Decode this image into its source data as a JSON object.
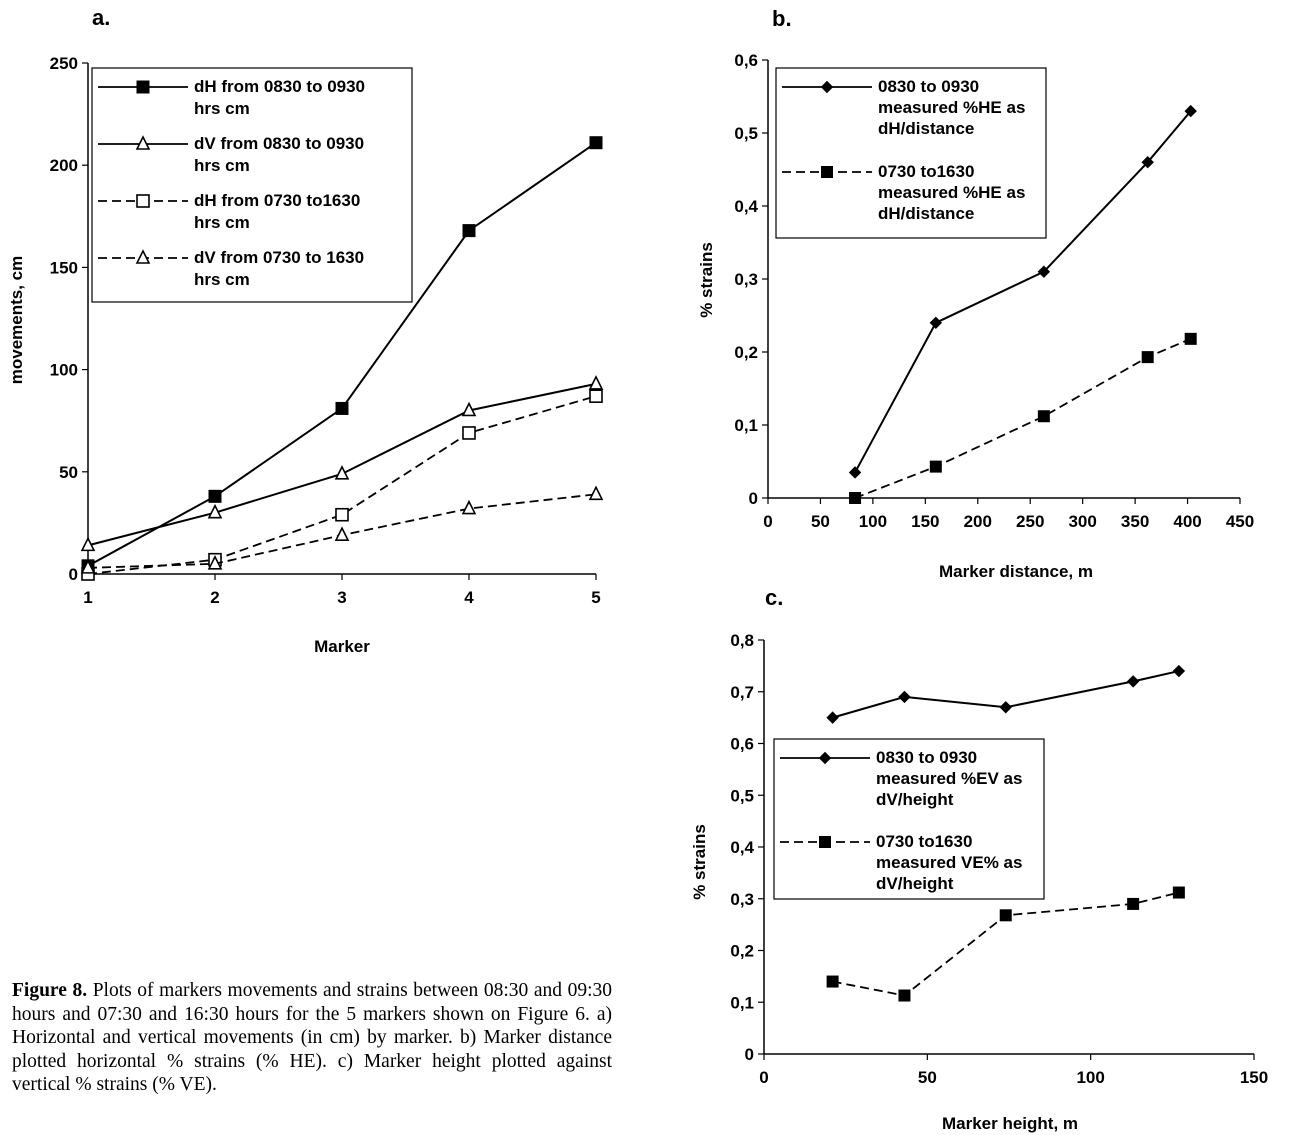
{
  "caption": {
    "label": "Figure 8.",
    "text": "Plots of markers movements and strains between 08:30 and 09:30 hours and 07:30 and 16:30 hours for the 5 markers shown on Figure 6. a) Horizontal and vertical movements (in cm) by marker. b) Marker distance plotted horizontal % strains (% HE). c) Marker height plotted against vertical % strains (% VE)."
  },
  "chart_data": [
    {
      "id": "a",
      "type": "line",
      "title": "a.",
      "xlabel": "Marker",
      "ylabel": "movements, cm",
      "xlim": [
        1,
        5
      ],
      "ylim": [
        0,
        250
      ],
      "xticks": [
        1,
        2,
        3,
        4,
        5
      ],
      "yticks": [
        0,
        50,
        100,
        150,
        200,
        250
      ],
      "tick_labels_x": [
        "1",
        "2",
        "3",
        "4",
        "5"
      ],
      "tick_labels_y": [
        "0",
        "50",
        "100",
        "150",
        "200",
        "250"
      ],
      "grid": false,
      "legend": "top-left",
      "series": [
        {
          "name": "dH from 0830 to 0930 hrs cm",
          "x": [
            1,
            2,
            3,
            4,
            5
          ],
          "values": [
            4,
            38,
            81,
            168,
            211
          ],
          "marker": "square-filled",
          "line": "solid"
        },
        {
          "name": "dV from 0830 to 0930 hrs cm",
          "x": [
            1,
            2,
            3,
            4,
            5
          ],
          "values": [
            14,
            30,
            49,
            80,
            93
          ],
          "marker": "triangle-open",
          "line": "solid"
        },
        {
          "name": "dH from 0730 to1630 hrs cm",
          "x": [
            1,
            2,
            3,
            4,
            5
          ],
          "values": [
            0,
            7,
            29,
            69,
            87
          ],
          "marker": "square-open",
          "line": "dashed"
        },
        {
          "name": "dV from 0730 to 1630 hrs cm",
          "x": [
            1,
            2,
            3,
            4,
            5
          ],
          "values": [
            3,
            5,
            19,
            32,
            39
          ],
          "marker": "triangle-open",
          "line": "dashed"
        }
      ]
    },
    {
      "id": "b",
      "type": "line",
      "title": "b.",
      "xlabel": "Marker distance, m",
      "ylabel": "% strains",
      "xlim": [
        0,
        450
      ],
      "ylim": [
        0,
        0.6
      ],
      "xticks": [
        0,
        50,
        100,
        150,
        200,
        250,
        300,
        350,
        400,
        450
      ],
      "yticks": [
        0,
        0.1,
        0.2,
        0.3,
        0.4,
        0.5,
        0.6
      ],
      "tick_labels_x": [
        "0",
        "50",
        "100",
        "150",
        "200",
        "250",
        "300",
        "350",
        "400",
        "450"
      ],
      "tick_labels_y": [
        "0",
        "0,1",
        "0,2",
        "0,3",
        "0,4",
        "0,5",
        "0,6"
      ],
      "grid": false,
      "legend": "top-left",
      "series": [
        {
          "name": "0830 to 0930 measured %HE as dH/distance",
          "x": [
            83,
            160,
            263,
            362,
            403
          ],
          "values": [
            0.035,
            0.24,
            0.31,
            0.46,
            0.53
          ],
          "marker": "diamond-filled",
          "line": "solid"
        },
        {
          "name": "0730 to1630 measured %HE as dH/distance",
          "x": [
            83,
            160,
            263,
            362,
            403
          ],
          "values": [
            0.0,
            0.043,
            0.112,
            0.193,
            0.218
          ],
          "marker": "square-filled",
          "line": "dashed"
        }
      ]
    },
    {
      "id": "c",
      "type": "line",
      "title": "c.",
      "xlabel": "Marker height, m",
      "ylabel": "% strains",
      "xlim": [
        0,
        150
      ],
      "ylim": [
        0,
        0.8
      ],
      "xticks": [
        0,
        50,
        100,
        150
      ],
      "yticks": [
        0,
        0.1,
        0.2,
        0.3,
        0.4,
        0.5,
        0.6,
        0.7,
        0.8
      ],
      "tick_labels_x": [
        "0",
        "50",
        "100",
        "150"
      ],
      "tick_labels_y": [
        "0",
        "0,1",
        "0,2",
        "0,3",
        "0,4",
        "0,5",
        "0,6",
        "0,7",
        "0,8"
      ],
      "grid": false,
      "legend": "center-left",
      "series": [
        {
          "name": "0830 to 0930 measured %EV as dV/height",
          "x": [
            21,
            43,
            74,
            113,
            127
          ],
          "values": [
            0.65,
            0.69,
            0.67,
            0.72,
            0.74
          ],
          "marker": "diamond-filled",
          "line": "solid"
        },
        {
          "name": "0730 to1630 measured VE% as dV/height",
          "x": [
            21,
            43,
            74,
            113,
            127
          ],
          "values": [
            0.14,
            0.113,
            0.268,
            0.29,
            0.312
          ],
          "marker": "square-filled",
          "line": "dashed"
        }
      ]
    }
  ]
}
